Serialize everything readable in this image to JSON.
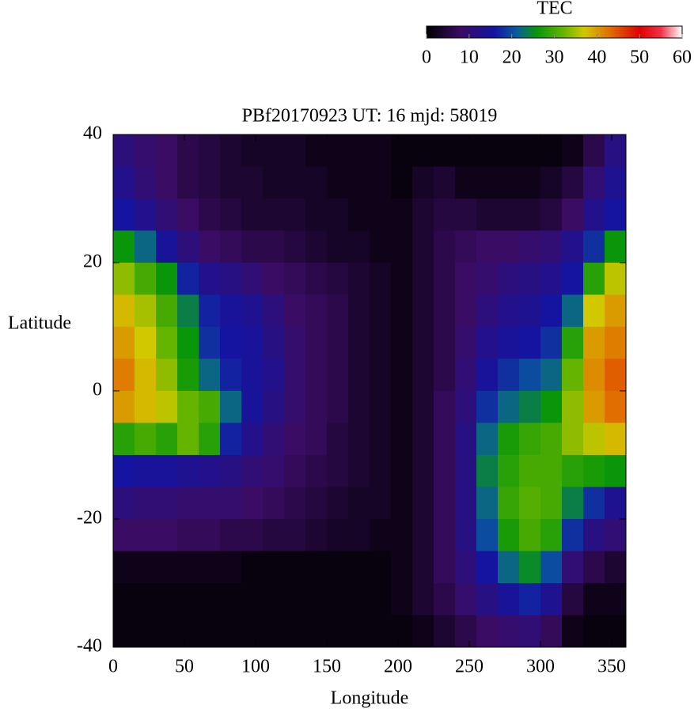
{
  "chart_data": {
    "type": "heatmap",
    "title": "PBf20170923  UT: 16  mjd: 58019",
    "x_label": "Longitude",
    "y_label": "Latitude",
    "x": [
      7.5,
      22.5,
      37.5,
      52.5,
      67.5,
      82.5,
      97.5,
      112.5,
      127.5,
      142.5,
      157.5,
      172.5,
      187.5,
      202.5,
      217.5,
      232.5,
      247.5,
      262.5,
      277.5,
      292.5,
      307.5,
      322.5,
      337.5,
      352.5
    ],
    "y": [
      37.5,
      32.5,
      27.5,
      22.5,
      17.5,
      12.5,
      7.5,
      2.5,
      -2.5,
      -7.5,
      -12.5,
      -17.5,
      -22.5,
      -27.5,
      -32.5,
      -37.5
    ],
    "z": [
      [
        11,
        9,
        8,
        6,
        5,
        4,
        3,
        3,
        3,
        2,
        2,
        2,
        2,
        1,
        1,
        1,
        1,
        1,
        1,
        1,
        1,
        2,
        6,
        12
      ],
      [
        13,
        10,
        8,
        6,
        5,
        4,
        4,
        3,
        3,
        3,
        2,
        2,
        2,
        1,
        3,
        4,
        2,
        2,
        2,
        2,
        3,
        5,
        10,
        14
      ],
      [
        16,
        13,
        10,
        8,
        6,
        5,
        4,
        4,
        4,
        3,
        3,
        2,
        2,
        2,
        4,
        5,
        5,
        4,
        4,
        4,
        5,
        8,
        13,
        16
      ],
      [
        26,
        22,
        15,
        11,
        8,
        7,
        6,
        6,
        5,
        4,
        3,
        3,
        2,
        2,
        4,
        6,
        7,
        8,
        8,
        9,
        10,
        13,
        18,
        26
      ],
      [
        34,
        30,
        26,
        17,
        13,
        12,
        10,
        8,
        7,
        6,
        5,
        4,
        3,
        2,
        4,
        6,
        8,
        9,
        11,
        12,
        13,
        16,
        28,
        36
      ],
      [
        38,
        35,
        30,
        24,
        17,
        15,
        14,
        11,
        8,
        7,
        6,
        4,
        3,
        2,
        4,
        6,
        8,
        11,
        13,
        14,
        16,
        22,
        37,
        40
      ],
      [
        40,
        37,
        32,
        26,
        18,
        16,
        15,
        12,
        9,
        7,
        6,
        4,
        3,
        2,
        4,
        6,
        9,
        13,
        15,
        16,
        18,
        28,
        40,
        42
      ],
      [
        42,
        38,
        34,
        27,
        22,
        17,
        15,
        13,
        9,
        7,
        6,
        4,
        3,
        2,
        4,
        6,
        10,
        15,
        18,
        20,
        22,
        32,
        41,
        44
      ],
      [
        40,
        38,
        36,
        32,
        30,
        22,
        15,
        12,
        9,
        7,
        6,
        4,
        3,
        2,
        4,
        7,
        11,
        18,
        22,
        24,
        26,
        34,
        40,
        43
      ],
      [
        28,
        30,
        28,
        32,
        28,
        17,
        13,
        10,
        8,
        7,
        5,
        4,
        3,
        2,
        4,
        7,
        12,
        22,
        27,
        29,
        30,
        34,
        36,
        38
      ],
      [
        16,
        15,
        15,
        14,
        13,
        12,
        10,
        9,
        7,
        6,
        5,
        4,
        3,
        2,
        4,
        7,
        12,
        24,
        28,
        30,
        30,
        28,
        27,
        26
      ],
      [
        11,
        10,
        10,
        9,
        9,
        9,
        8,
        7,
        6,
        5,
        4,
        3,
        3,
        2,
        4,
        7,
        12,
        22,
        29,
        31,
        30,
        24,
        18,
        14
      ],
      [
        8,
        8,
        8,
        7,
        7,
        6,
        6,
        5,
        5,
        4,
        3,
        3,
        2,
        2,
        4,
        7,
        12,
        20,
        27,
        30,
        28,
        18,
        12,
        10
      ],
      [
        2,
        2,
        2,
        2,
        2,
        2,
        1,
        1,
        1,
        1,
        1,
        1,
        1,
        2,
        4,
        7,
        11,
        16,
        22,
        25,
        20,
        10,
        6,
        4
      ],
      [
        1,
        1,
        1,
        1,
        1,
        1,
        1,
        1,
        1,
        1,
        1,
        1,
        1,
        2,
        4,
        6,
        9,
        12,
        15,
        17,
        14,
        5,
        2,
        2
      ],
      [
        1,
        1,
        1,
        1,
        1,
        1,
        1,
        1,
        1,
        1,
        1,
        1,
        1,
        1,
        2,
        4,
        6,
        8,
        9,
        10,
        7,
        2,
        1,
        1
      ]
    ],
    "xlim": [
      0,
      360
    ],
    "ylim": [
      -40,
      40
    ],
    "xticks": [
      0,
      50,
      100,
      150,
      200,
      250,
      300,
      350
    ],
    "yticks": [
      -40,
      -20,
      0,
      20,
      40
    ],
    "colorbar": {
      "label": "TEC",
      "lim": [
        0,
        60
      ],
      "ticks": [
        0,
        10,
        20,
        30,
        40,
        50,
        60
      ]
    },
    "colorscale": [
      [
        0,
        "#000000"
      ],
      [
        8,
        "#3a0c64"
      ],
      [
        16,
        "#1414a0"
      ],
      [
        21,
        "#0a5aa0"
      ],
      [
        26,
        "#0a960a"
      ],
      [
        32,
        "#64b400"
      ],
      [
        37,
        "#d2c800"
      ],
      [
        43,
        "#e06e00"
      ],
      [
        50,
        "#e00000"
      ],
      [
        55,
        "#f03246"
      ],
      [
        60,
        "#ffffff"
      ]
    ]
  }
}
